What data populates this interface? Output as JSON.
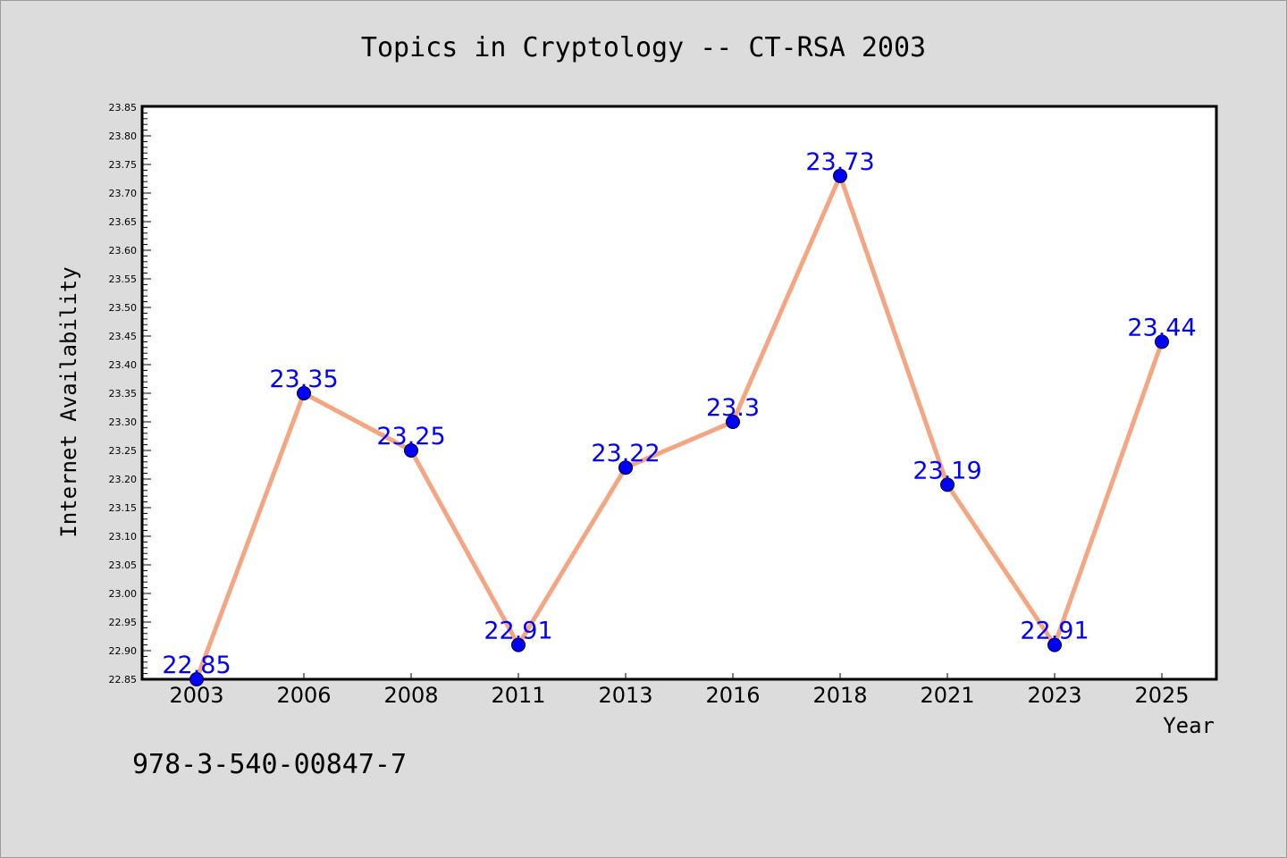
{
  "footer_text": "978-3-540-00847-7",
  "chart_data": {
    "type": "line",
    "title": "Topics in Cryptology -- CT-RSA 2003",
    "xlabel": "Year",
    "ylabel": "Internet Availability",
    "categories": [
      "2003",
      "2006",
      "2008",
      "2011",
      "2013",
      "2016",
      "2018",
      "2021",
      "2023",
      "2025"
    ],
    "series": [
      {
        "values": [
          22.85,
          23.35,
          23.25,
          22.91,
          23.22,
          23.3,
          23.73,
          23.19,
          22.91,
          23.44
        ],
        "labels": [
          "22.85",
          "23.35",
          "23.25",
          "22.91",
          "23.22",
          "23.3",
          "23.73",
          "23.19",
          "22.91",
          "23.44"
        ]
      }
    ],
    "ylim": [
      22.85,
      23.85
    ],
    "yticks": [
      "22.85",
      "22.90",
      "22.95",
      "23.00",
      "23.05",
      "23.10",
      "23.15",
      "23.20",
      "23.25",
      "23.30",
      "23.35",
      "23.40",
      "23.45",
      "23.50",
      "23.55",
      "23.60",
      "23.65",
      "23.70",
      "23.75",
      "23.80",
      "23.85"
    ],
    "grid": false,
    "legend": "none",
    "colors": {
      "line": "#f4a582",
      "marker": "#0000ff",
      "data_label": "#0000ff",
      "plot_background": "#ffffff",
      "figure_background": "#dcdcdc"
    }
  }
}
